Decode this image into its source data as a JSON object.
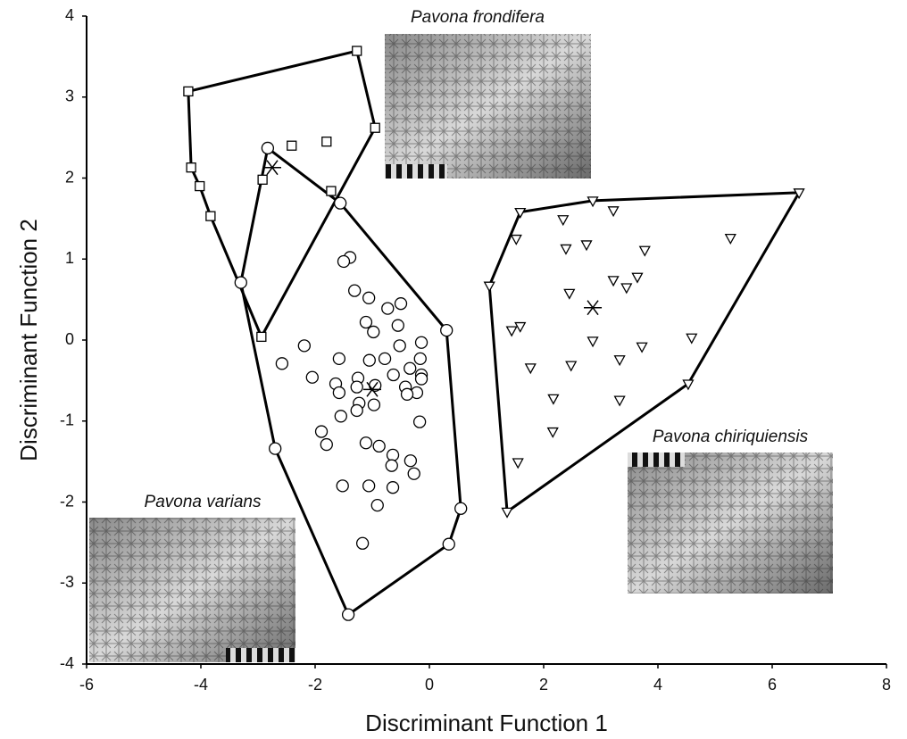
{
  "chart_data": {
    "type": "scatter",
    "xlabel": "Discriminant Function 1",
    "ylabel": "Discriminant Function 2",
    "xlim": [
      -6,
      8
    ],
    "ylim": [
      -4,
      4
    ],
    "xticks": [
      -6,
      -4,
      -2,
      0,
      2,
      4,
      6,
      8
    ],
    "yticks": [
      -4,
      -3,
      -2,
      -1,
      0,
      1,
      2,
      3,
      4
    ],
    "series": [
      {
        "name": "Pavona frondifera",
        "color": "#000000",
        "marker": "square",
        "x": [
          -4.22,
          -1.27,
          -0.95,
          -2.94,
          -3.83,
          -4.02,
          -4.17,
          -2.41,
          -1.8,
          -1.72,
          -2.92
        ],
        "y": [
          3.07,
          3.57,
          2.62,
          0.04,
          1.53,
          1.9,
          2.13,
          2.4,
          2.45,
          1.84,
          1.98
        ],
        "hull": {
          "x": [
            -4.22,
            -1.27,
            -0.95,
            -2.94,
            -3.83,
            -4.02,
            -4.17
          ],
          "y": [
            3.07,
            3.57,
            2.62,
            0.04,
            1.53,
            1.9,
            2.13
          ]
        },
        "centroid": {
          "x": -2.75,
          "y": 2.13
        }
      },
      {
        "name": "Pavona varians",
        "color": "#000000",
        "marker": "circle",
        "x": [
          -2.83,
          -1.56,
          0.3,
          0.55,
          0.34,
          -1.42,
          -2.7,
          -3.3,
          -1.39,
          -1.5,
          -1.31,
          -1.06,
          -0.73,
          -0.5,
          -1.11,
          -0.98,
          -0.55,
          -0.14,
          -2.19,
          -0.52,
          -0.78,
          -0.16,
          -2.58,
          -1.58,
          -1.05,
          -0.34,
          -0.14,
          -0.14,
          -2.05,
          -1.64,
          -1.25,
          -0.63,
          -0.42,
          -0.22,
          -1.27,
          -0.95,
          -0.39,
          -1.58,
          -1.23,
          -0.97,
          -1.27,
          -1.55,
          -0.17,
          -1.89,
          -1.8,
          -1.11,
          -0.88,
          -0.33,
          -0.64,
          -0.66,
          -0.27,
          -1.52,
          -1.06,
          -0.64,
          -0.91,
          -1.17
        ],
        "y": [
          2.37,
          1.69,
          0.12,
          -2.08,
          -2.52,
          -3.39,
          -1.34,
          0.71,
          1.02,
          0.97,
          0.61,
          0.52,
          0.39,
          0.45,
          0.22,
          0.1,
          0.18,
          -0.03,
          -0.07,
          -0.07,
          -0.23,
          -0.23,
          -0.29,
          -0.23,
          -0.25,
          -0.35,
          -0.43,
          -0.48,
          -0.46,
          -0.54,
          -0.47,
          -0.43,
          -0.58,
          -0.65,
          -0.58,
          -0.56,
          -0.67,
          -0.65,
          -0.78,
          -0.8,
          -0.87,
          -0.94,
          -1.01,
          -1.13,
          -1.29,
          -1.27,
          -1.31,
          -1.49,
          -1.42,
          -1.55,
          -1.65,
          -1.8,
          -1.8,
          -1.82,
          -2.04,
          -2.51
        ],
        "hull": {
          "x": [
            -2.83,
            -1.56,
            0.3,
            0.55,
            0.34,
            -1.42,
            -2.7,
            -3.3
          ],
          "y": [
            2.37,
            1.69,
            0.12,
            -2.08,
            -2.52,
            -3.39,
            -1.34,
            0.71
          ]
        },
        "centroid": {
          "x": -1.0,
          "y": -0.61
        }
      },
      {
        "name": "Pavona chiriquiensis",
        "color": "#000000",
        "marker": "triangle-down",
        "x": [
          1.05,
          1.59,
          2.86,
          6.47,
          4.53,
          1.36,
          2.34,
          3.22,
          1.52,
          2.39,
          2.75,
          3.77,
          5.27,
          3.22,
          3.45,
          3.64,
          2.45,
          1.59,
          1.44,
          2.86,
          3.72,
          4.59,
          1.77,
          2.48,
          3.33,
          2.17,
          3.33,
          2.16,
          1.55
        ],
        "y": [
          0.67,
          1.58,
          1.72,
          1.82,
          -0.54,
          -2.12,
          1.49,
          1.6,
          1.25,
          1.13,
          1.18,
          1.11,
          1.26,
          0.74,
          0.65,
          0.78,
          0.58,
          0.17,
          0.12,
          -0.01,
          -0.08,
          0.03,
          -0.34,
          -0.31,
          -0.24,
          -0.72,
          -0.74,
          -1.13,
          -1.51
        ],
        "hull": {
          "x": [
            1.05,
            1.59,
            2.86,
            6.47,
            4.53,
            1.36
          ],
          "y": [
            0.67,
            1.58,
            1.72,
            1.82,
            -0.54,
            -2.12
          ]
        },
        "centroid": {
          "x": 2.86,
          "y": 0.4
        }
      }
    ]
  }
}
